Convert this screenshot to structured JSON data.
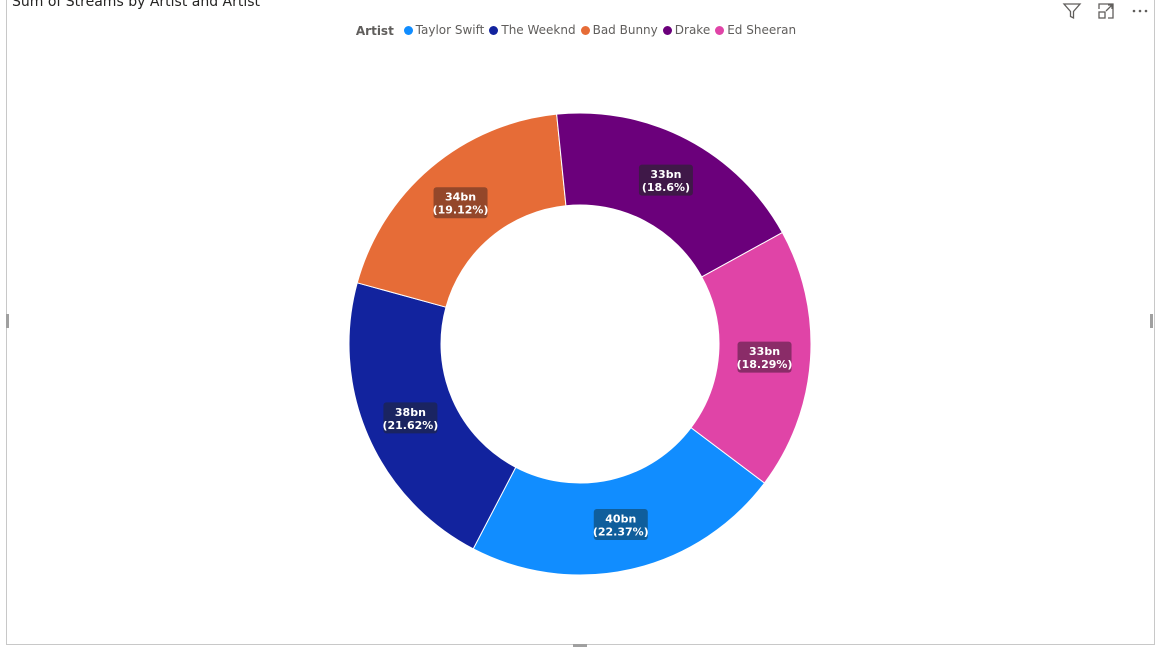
{
  "title": "Sum of Streams by Artist and Artist",
  "legend_title": "Artist",
  "icons": [
    "filter-icon",
    "focus-mode-icon",
    "more-options-icon"
  ],
  "chart_data": {
    "type": "pie",
    "variant": "donut",
    "title": "Sum of Streams by Artist and Artist",
    "legend_title": "Artist",
    "legend_position": "top-center",
    "slices": [
      {
        "name": "Taylor Swift",
        "value": 40,
        "value_label": "40bn",
        "percent": 22.37,
        "percent_label": "(22.37%)",
        "color": "#118DFF",
        "label_bg": "#0F5E9C"
      },
      {
        "name": "The Weeknd",
        "value": 38,
        "value_label": "38bn",
        "percent": 21.62,
        "percent_label": "(21.62%)",
        "color": "#12239E",
        "label_bg": "#1A2461"
      },
      {
        "name": "Bad Bunny",
        "value": 34,
        "value_label": "34bn",
        "percent": 19.12,
        "percent_label": "(19.12%)",
        "color": "#E66C37",
        "label_bg": "#94472A"
      },
      {
        "name": "Drake",
        "value": 33,
        "value_label": "33bn",
        "percent": 18.6,
        "percent_label": "(18.6%)",
        "color": "#6B007B",
        "label_bg": "#3F1848"
      },
      {
        "name": "Ed Sheeran",
        "value": 33,
        "value_label": "33bn",
        "percent": 18.29,
        "percent_label": "(18.29%)",
        "color": "#E044A7",
        "label_bg": "#8A2C68"
      }
    ]
  }
}
